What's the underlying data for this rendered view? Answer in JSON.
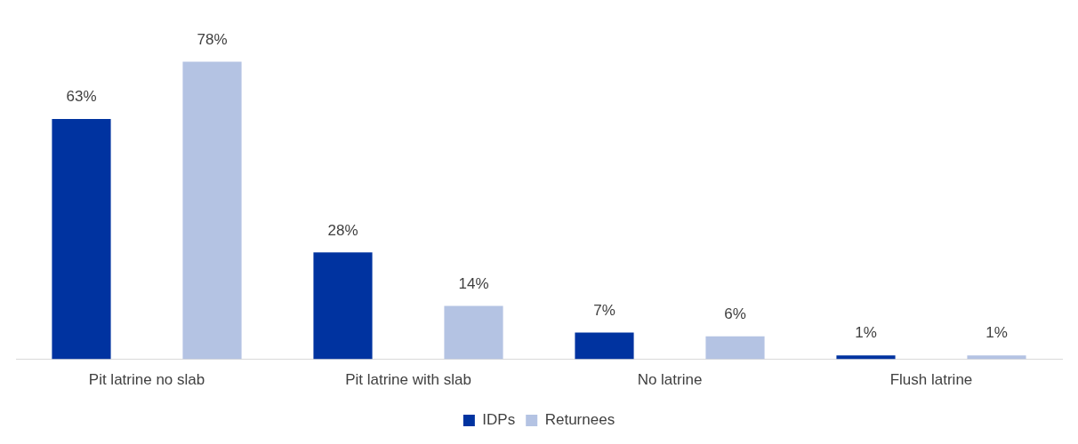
{
  "chart_data": {
    "type": "bar",
    "categories": [
      "Pit latrine no slab",
      "Pit latrine with slab",
      "No latrine",
      "Flush latrine"
    ],
    "series": [
      {
        "name": "IDPs",
        "color": "#0033a0",
        "values": [
          63,
          28,
          7,
          1
        ],
        "value_labels": [
          "63%",
          "28%",
          "7%",
          "1%"
        ]
      },
      {
        "name": "Returnees",
        "color": "#b4c3e3",
        "values": [
          78,
          14,
          6,
          1
        ],
        "value_labels": [
          "78%",
          "14%",
          "6%",
          "1%"
        ]
      }
    ],
    "legend": "bottom",
    "grid": false
  }
}
